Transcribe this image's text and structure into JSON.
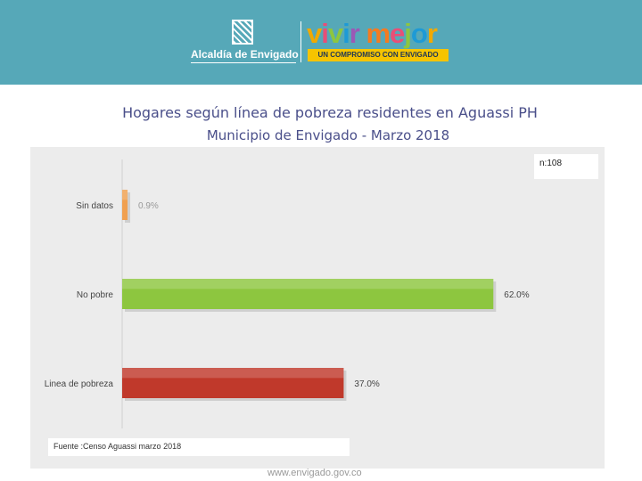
{
  "header": {
    "logo_left_text": "Alcaldía de Envigado",
    "logo_right_word": "vivir mejor",
    "logo_right_tagline": "UN COMPROMISO CON ENVIGADO",
    "banner_color": "#56a8b8"
  },
  "title": "Hogares según línea de pobreza residentes en Aguassi PH",
  "subtitle": "Municipio de Envigado - Marzo 2018",
  "sample_note": "n:108",
  "source_note": "Fuente :Censo Aguassi marzo 2018",
  "footer_url": "www.envigado.gov.co",
  "chart_data": {
    "type": "bar",
    "orientation": "horizontal",
    "categories": [
      "Sin datos",
      "No pobre",
      "Linea de pobreza"
    ],
    "values": [
      0.9,
      62.0,
      37.0
    ],
    "value_labels": [
      "0.9%",
      "62.0%",
      "37.0%"
    ],
    "colors": [
      "#f0a050",
      "#8dc63f",
      "#c0392b"
    ],
    "xlim": [
      0,
      70
    ],
    "grid": false,
    "legend": "none"
  }
}
